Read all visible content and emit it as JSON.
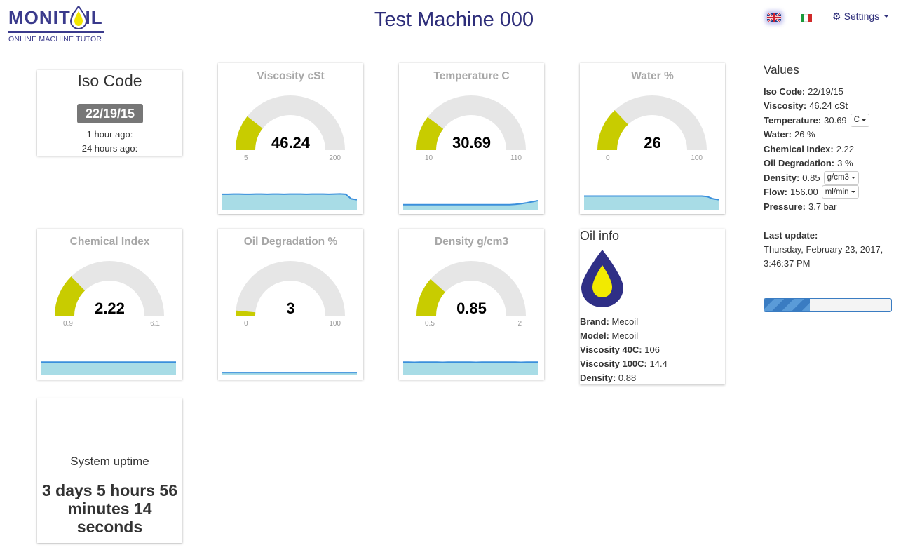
{
  "header": {
    "logo_text": "MONITOIL",
    "logo_tagline": "ONLINE MACHINE TUTOR",
    "title": "Test Machine 000",
    "settings_label": "Settings",
    "languages": [
      "uk-flag-icon",
      "italy-flag-icon"
    ],
    "brand_color": "#2e2e7a"
  },
  "iso": {
    "title": "Iso Code",
    "code": "22/19/15",
    "line1": "1 hour ago:",
    "line2": "24 hours ago:"
  },
  "gauges": [
    {
      "id": "viscosity",
      "title": "Viscosity cSt",
      "value": "46.24",
      "numeric": 46.24,
      "min": "5",
      "max": "200",
      "min_num": 5,
      "max_num": 200,
      "trend": [
        0.85,
        0.85,
        0.86,
        0.86,
        0.85,
        0.85,
        0.86,
        0.86,
        0.85,
        0.86,
        0.86,
        0.85,
        0.86,
        0.86,
        0.86,
        0.85,
        0.86,
        0.86,
        0.86,
        0.85,
        0.86,
        0.87,
        0.85,
        0.6,
        0.55
      ]
    },
    {
      "id": "temperature",
      "title": "Temperature C",
      "value": "30.69",
      "numeric": 30.69,
      "min": "10",
      "max": "110",
      "min_num": 10,
      "max_num": 110,
      "trend": [
        0.28,
        0.28,
        0.28,
        0.28,
        0.28,
        0.28,
        0.28,
        0.28,
        0.28,
        0.28,
        0.28,
        0.28,
        0.28,
        0.28,
        0.28,
        0.28,
        0.28,
        0.28,
        0.28,
        0.28,
        0.3,
        0.33,
        0.38,
        0.44,
        0.5
      ]
    },
    {
      "id": "water",
      "title": "Water %",
      "value": "26",
      "numeric": 26,
      "min": "0",
      "max": "100",
      "min_num": 0,
      "max_num": 100,
      "trend": [
        0.75,
        0.75,
        0.75,
        0.75,
        0.75,
        0.75,
        0.75,
        0.75,
        0.75,
        0.75,
        0.75,
        0.75,
        0.75,
        0.75,
        0.75,
        0.75,
        0.75,
        0.75,
        0.75,
        0.75,
        0.75,
        0.75,
        0.72,
        0.6,
        0.55
      ]
    },
    {
      "id": "chemical",
      "title": "Chemical Index",
      "value": "2.22",
      "numeric": 2.22,
      "min": "0.9",
      "max": "6.1",
      "min_num": 0.9,
      "max_num": 6.1,
      "trend": [
        0.72,
        0.72,
        0.72,
        0.72,
        0.72,
        0.72,
        0.72,
        0.72,
        0.72,
        0.72,
        0.72,
        0.72,
        0.72,
        0.72,
        0.72,
        0.72,
        0.72,
        0.72,
        0.72,
        0.72,
        0.72,
        0.72,
        0.72,
        0.72,
        0.72
      ]
    },
    {
      "id": "degradation",
      "title": "Oil Degradation %",
      "value": "3",
      "numeric": 3,
      "min": "0",
      "max": "100",
      "min_num": 0,
      "max_num": 100,
      "trend": [
        0.15,
        0.15,
        0.15,
        0.15,
        0.15,
        0.15,
        0.15,
        0.15,
        0.15,
        0.15,
        0.15,
        0.15,
        0.15,
        0.15,
        0.15,
        0.15,
        0.15,
        0.15,
        0.15,
        0.15,
        0.15,
        0.15,
        0.15,
        0.15,
        0.15
      ]
    },
    {
      "id": "density",
      "title": "Density g/cm3",
      "value": "0.85",
      "numeric": 0.85,
      "min": "0.5",
      "max": "2",
      "min_num": 0.5,
      "max_num": 2,
      "trend": [
        0.72,
        0.72,
        0.71,
        0.72,
        0.72,
        0.72,
        0.72,
        0.71,
        0.72,
        0.72,
        0.72,
        0.72,
        0.72,
        0.71,
        0.72,
        0.72,
        0.72,
        0.72,
        0.72,
        0.72,
        0.72,
        0.71,
        0.72,
        0.72,
        0.72
      ]
    }
  ],
  "colors": {
    "gauge_fill": "#c8cc00",
    "gauge_track": "#e6e6e6",
    "spark_line": "#3a8fdc",
    "spark_area": "#a8dce6"
  },
  "oil_info": {
    "title": "Oil info",
    "rows": [
      {
        "label": "Brand:",
        "value": "Mecoil"
      },
      {
        "label": "Model:",
        "value": "Mecoil"
      },
      {
        "label": "Viscosity 40C:",
        "value": "106"
      },
      {
        "label": "Viscosity 100C:",
        "value": "14.4"
      },
      {
        "label": "Density:",
        "value": "0.88"
      }
    ]
  },
  "uptime": {
    "label": "System uptime",
    "value": "3 days 5 hours 56 minutes 14 seconds"
  },
  "values": {
    "title": "Values",
    "rows": [
      {
        "label": "Iso Code:",
        "value": "22/19/15",
        "unit": ""
      },
      {
        "label": "Viscosity:",
        "value": "46.24 cSt",
        "unit": ""
      },
      {
        "label": "Temperature:",
        "value": "30.69",
        "unit": "C"
      },
      {
        "label": "Water:",
        "value": "26 %",
        "unit": ""
      },
      {
        "label": "Chemical Index:",
        "value": "2.22",
        "unit": ""
      },
      {
        "label": "Oil Degradation:",
        "value": "3 %",
        "unit": ""
      },
      {
        "label": "Density:",
        "value": "0.85",
        "unit": "g/cm3"
      },
      {
        "label": "Flow:",
        "value": "156.00",
        "unit": "ml/min"
      },
      {
        "label": "Pressure:",
        "value": "3.7 bar",
        "unit": ""
      }
    ],
    "last_update_label": "Last update:",
    "last_update_value": "Thursday, February 23, 2017, 3:46:37 PM",
    "progress_fraction": 0.36
  }
}
